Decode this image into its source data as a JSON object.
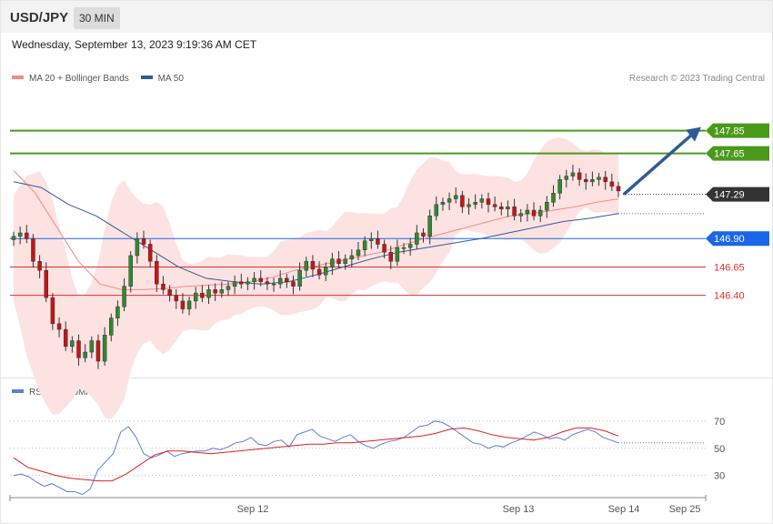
{
  "header": {
    "symbol": "USD/JPY",
    "timeframe": "30 MIN"
  },
  "datetime": "Wednesday, September 13, 2023 9:19:36 AM CET",
  "credit": "Research © 2023 Trading Central",
  "legend_main": [
    {
      "label": "MA 20 + Bollinger Bands",
      "color": "#f28b82"
    },
    {
      "label": "MA 50",
      "color": "#2e5c99"
    }
  ],
  "legend_rsi": [
    {
      "label": "RSI",
      "color": "#5b7fd4"
    },
    {
      "label": "9MA",
      "color": "#e02020"
    }
  ],
  "chart_data": [
    {
      "type": "candlestick",
      "ylim": [
        145.7,
        148.2
      ],
      "levels": [
        {
          "value": 147.85,
          "label": "147.85",
          "style": "resistance",
          "color": "#4a9a1a"
        },
        {
          "value": 147.65,
          "label": "147.65",
          "style": "resistance",
          "color": "#4a9a1a"
        },
        {
          "value": 147.29,
          "label": "147.29",
          "style": "current",
          "color": "#333333"
        },
        {
          "value": 146.9,
          "label": "146.90",
          "style": "pivot",
          "color": "#1a66e8"
        },
        {
          "value": 146.65,
          "label": "146.65",
          "style": "support",
          "color": "#d93030"
        },
        {
          "value": 146.4,
          "label": "146.40",
          "style": "support",
          "color": "#d93030"
        }
      ],
      "projection": {
        "from": 147.29,
        "to": 147.85,
        "direction": "up",
        "color": "#2e5c99"
      },
      "x_ticks": [
        "Sep 12",
        "Sep 13",
        "Sep 14",
        "Sep 25"
      ],
      "series": [
        {
          "name": "Price (close)",
          "values": [
            146.92,
            146.95,
            146.9,
            146.7,
            146.62,
            146.38,
            146.15,
            146.1,
            145.95,
            146.0,
            145.85,
            145.9,
            146.0,
            145.82,
            146.05,
            146.2,
            146.3,
            146.48,
            146.75,
            146.9,
            146.85,
            146.7,
            146.5,
            146.45,
            146.4,
            146.35,
            146.28,
            146.35,
            146.42,
            146.38,
            146.45,
            146.42,
            146.45,
            146.48,
            146.52,
            146.5,
            146.52,
            146.55,
            146.52,
            146.5,
            146.5,
            146.55,
            146.52,
            146.48,
            146.62,
            146.7,
            146.63,
            146.58,
            146.65,
            146.72,
            146.68,
            146.72,
            146.75,
            146.8,
            146.88,
            146.9,
            146.85,
            146.78,
            146.7,
            146.82,
            146.82,
            146.85,
            146.95,
            146.92,
            147.1,
            147.2,
            147.22,
            147.25,
            147.28,
            147.18,
            147.2,
            147.22,
            147.25,
            147.2,
            147.18,
            147.16,
            147.18,
            147.1,
            147.12,
            147.15,
            147.1,
            147.15,
            147.22,
            147.3,
            147.42,
            147.45,
            147.48,
            147.42,
            147.4,
            147.42,
            147.44,
            147.4,
            147.36,
            147.32
          ]
        },
        {
          "name": "MA 20",
          "values": [
            147.5,
            147.3,
            147.0,
            146.7,
            146.5,
            146.45,
            146.45,
            146.46,
            146.48,
            146.49,
            146.5,
            146.52,
            146.56,
            146.62,
            146.66,
            146.7,
            146.74,
            146.78,
            146.84,
            146.9,
            146.95,
            147.0,
            147.05,
            147.1,
            147.12,
            147.15,
            147.18,
            147.22,
            147.25
          ]
        },
        {
          "name": "MA 50",
          "values": [
            147.4,
            147.35,
            147.2,
            147.1,
            146.95,
            146.8,
            146.65,
            146.55,
            146.52,
            146.5,
            146.52,
            146.58,
            146.65,
            146.72,
            146.78,
            146.82,
            146.86,
            146.9,
            146.95,
            147.0,
            147.05,
            147.08,
            147.12
          ]
        }
      ]
    },
    {
      "type": "line",
      "title": "RSI",
      "ylim": [
        15,
        80
      ],
      "y_ticks": [
        30,
        50,
        70
      ],
      "series": [
        {
          "name": "RSI",
          "values": [
            30,
            31,
            29,
            25,
            22,
            24,
            21,
            18,
            18,
            16,
            20,
            34,
            40,
            46,
            62,
            66,
            58,
            46,
            43,
            45,
            48,
            44,
            46,
            47,
            48,
            48,
            50,
            49,
            51,
            54,
            55,
            58,
            53,
            52,
            55,
            56,
            51,
            60,
            62,
            64,
            59,
            57,
            55,
            58,
            60,
            55,
            52,
            50,
            53,
            55,
            56,
            58,
            62,
            66,
            67,
            70,
            69,
            66,
            62,
            58,
            54,
            53,
            50,
            52,
            51,
            54,
            56,
            59,
            62,
            60,
            57,
            58,
            56,
            60,
            62,
            64,
            62,
            58,
            56,
            54
          ]
        },
        {
          "name": "9MA",
          "values": [
            43,
            36,
            33,
            30,
            28,
            27,
            26,
            26,
            31,
            38,
            45,
            48,
            48,
            47,
            46,
            47,
            48,
            49,
            50,
            51,
            52,
            53,
            53,
            54,
            54,
            55,
            56,
            57,
            58,
            59,
            61,
            64,
            65,
            63,
            60,
            58,
            57,
            56,
            58,
            62,
            65,
            65,
            63,
            59
          ]
        }
      ]
    }
  ]
}
